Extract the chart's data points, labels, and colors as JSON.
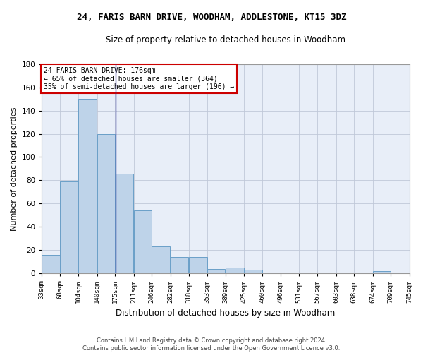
{
  "title": "24, FARIS BARN DRIVE, WOODHAM, ADDLESTONE, KT15 3DZ",
  "subtitle": "Size of property relative to detached houses in Woodham",
  "xlabel": "Distribution of detached houses by size in Woodham",
  "ylabel": "Number of detached properties",
  "bar_color": "#bed3e9",
  "bar_edge_color": "#6a9fc8",
  "marker_line_color": "#333399",
  "background_color": "#e8eef8",
  "grid_color": "#c0c8d8",
  "annotation_box_color": "#cc0000",
  "bins": [
    33,
    68,
    104,
    140,
    175,
    211,
    246,
    282,
    318,
    353,
    389,
    425,
    460,
    496,
    531,
    567,
    603,
    638,
    674,
    709,
    745
  ],
  "counts": [
    16,
    79,
    150,
    120,
    86,
    54,
    23,
    14,
    14,
    4,
    5,
    3,
    0,
    0,
    0,
    0,
    0,
    0,
    2,
    0
  ],
  "property_size": 176,
  "annotation_line1": "24 FARIS BARN DRIVE: 176sqm",
  "annotation_line2": "← 65% of detached houses are smaller (364)",
  "annotation_line3": "35% of semi-detached houses are larger (196) →",
  "footer_line1": "Contains HM Land Registry data © Crown copyright and database right 2024.",
  "footer_line2": "Contains public sector information licensed under the Open Government Licence v3.0.",
  "ylim": [
    0,
    180
  ],
  "yticks": [
    0,
    20,
    40,
    60,
    80,
    100,
    120,
    140,
    160,
    180
  ]
}
